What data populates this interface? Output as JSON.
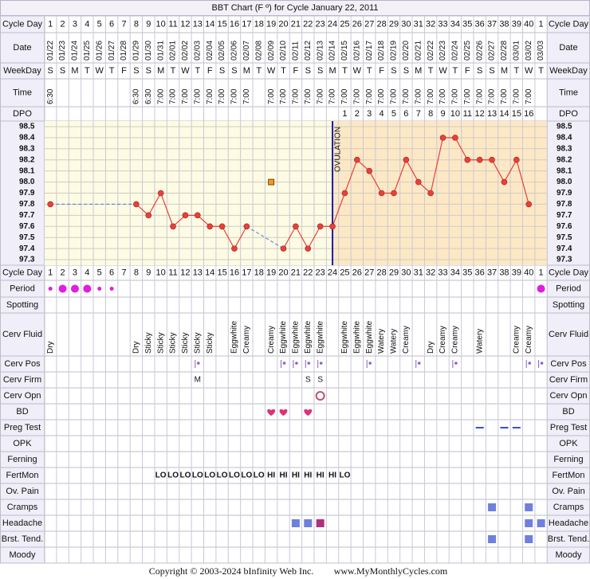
{
  "title": "BBT Chart (F º) for Cycle January 22, 2011",
  "row_labels": {
    "cycle_day": "Cycle Day",
    "date": "Date",
    "weekday": "WeekDay",
    "time": "Time",
    "dpo": "DPO",
    "period": "Period",
    "spotting": "Spotting",
    "cerv_fluid": "Cerv Fluid",
    "cerv_pos": "Cerv Pos",
    "cerv_firm": "Cerv Firm",
    "cerv_opn": "Cerv Opn",
    "bd": "BD",
    "preg_test": "Preg Test",
    "opk": "OPK",
    "ferning": "Ferning",
    "fertmon": "FertMon",
    "ov_pain": "Ov. Pain",
    "cramps": "Cramps",
    "headache": "Headache",
    "brst_tend": "Brst. Tend.",
    "moody": "Moody"
  },
  "days": {
    "date": [
      "01/22",
      "01/23",
      "01/24",
      "01/25",
      "01/26",
      "01/27",
      "01/28",
      "01/29",
      "01/30",
      "01/31",
      "02/01",
      "02/02",
      "02/03",
      "02/04",
      "02/05",
      "02/06",
      "02/07",
      "02/08",
      "02/09",
      "02/10",
      "02/11",
      "02/12",
      "02/13",
      "02/14",
      "02/15",
      "02/16",
      "02/17",
      "02/18",
      "02/19",
      "02/20",
      "02/21",
      "02/22",
      "02/23",
      "02/24",
      "02/25",
      "02/26",
      "02/27",
      "02/28",
      "03/01",
      "03/02",
      "03/03"
    ],
    "weekday": [
      "S",
      "S",
      "M",
      "T",
      "W",
      "T",
      "F",
      "S",
      "S",
      "M",
      "T",
      "W",
      "T",
      "F",
      "S",
      "S",
      "M",
      "T",
      "W",
      "T",
      "F",
      "S",
      "S",
      "M",
      "T",
      "W",
      "T",
      "F",
      "S",
      "S",
      "M",
      "T",
      "W",
      "T",
      "F",
      "S",
      "S",
      "M",
      "T",
      "W",
      "T"
    ],
    "time": [
      "6:30",
      null,
      null,
      null,
      null,
      null,
      null,
      "6:30",
      "6:30",
      "7:00",
      "7:00",
      "7:00",
      "7:00",
      "7:00",
      "7:00",
      "7:00",
      "7:00",
      null,
      "7:00",
      "7:00",
      "7:00",
      "7:00",
      "7:00",
      "7:00",
      "7:00",
      "7:00",
      "7:00",
      "7:00",
      "7:00",
      "7:00",
      "7:00",
      "7:00",
      "7:00",
      "7:00",
      "7:00",
      "7:00",
      "7:00",
      "7:00",
      "7:00",
      "7:00",
      null
    ],
    "dpo": [
      null,
      null,
      null,
      null,
      null,
      null,
      null,
      null,
      null,
      null,
      null,
      null,
      null,
      null,
      null,
      null,
      null,
      null,
      null,
      null,
      null,
      null,
      null,
      null,
      1,
      2,
      3,
      4,
      5,
      6,
      7,
      8,
      9,
      10,
      11,
      12,
      13,
      14,
      15,
      16,
      null
    ],
    "period": [
      1,
      2,
      2,
      2,
      1,
      1,
      null,
      null,
      null,
      null,
      null,
      null,
      null,
      null,
      null,
      null,
      null,
      null,
      null,
      null,
      null,
      null,
      null,
      null,
      null,
      null,
      null,
      null,
      null,
      null,
      null,
      null,
      null,
      null,
      null,
      null,
      null,
      null,
      null,
      null,
      2
    ],
    "cerv_fluid": [
      "Dry",
      null,
      null,
      null,
      null,
      null,
      null,
      "Dry",
      "Sticky",
      "Sticky",
      "Sticky",
      "Sticky",
      "Sticky",
      "Sticky",
      null,
      "Eggwhite",
      "Creamy",
      null,
      "Creamy",
      "Eggwhite",
      "Eggwhite",
      "Eggwhite",
      "Eggwhite",
      null,
      "Eggwhite",
      "Eggwhite",
      "Eggwhite",
      "Watery",
      "Watery",
      "Creamy",
      null,
      "Dry",
      "Creamy",
      "Creamy",
      null,
      "Watery",
      null,
      null,
      "Creamy",
      "Creamy",
      null
    ],
    "cerv_pos": [
      null,
      null,
      null,
      null,
      null,
      null,
      null,
      null,
      null,
      null,
      null,
      null,
      1,
      null,
      null,
      null,
      null,
      null,
      null,
      1,
      1,
      1,
      1,
      null,
      null,
      null,
      1,
      null,
      null,
      null,
      1,
      null,
      null,
      1,
      null,
      null,
      null,
      null,
      null,
      1,
      1
    ],
    "cerv_firm": [
      null,
      null,
      null,
      null,
      null,
      null,
      null,
      null,
      null,
      null,
      null,
      null,
      "M",
      null,
      null,
      null,
      null,
      null,
      null,
      null,
      null,
      "S",
      "S",
      null,
      null,
      null,
      null,
      null,
      null,
      null,
      null,
      null,
      null,
      null,
      null,
      null,
      null,
      null,
      null,
      null,
      null
    ],
    "cerv_opn": [
      null,
      null,
      null,
      null,
      null,
      null,
      null,
      null,
      null,
      null,
      null,
      null,
      null,
      null,
      null,
      null,
      null,
      null,
      null,
      null,
      null,
      null,
      1,
      null,
      null,
      null,
      null,
      null,
      null,
      null,
      null,
      null,
      null,
      null,
      null,
      null,
      null,
      null,
      null,
      null,
      null
    ],
    "bd": [
      null,
      null,
      null,
      null,
      null,
      null,
      null,
      null,
      null,
      null,
      null,
      null,
      null,
      null,
      null,
      null,
      null,
      null,
      1,
      1,
      null,
      1,
      null,
      null,
      null,
      null,
      null,
      null,
      null,
      null,
      null,
      null,
      null,
      null,
      null,
      null,
      null,
      null,
      null,
      null,
      null
    ],
    "preg_test": [
      null,
      null,
      null,
      null,
      null,
      null,
      null,
      null,
      null,
      null,
      null,
      null,
      null,
      null,
      null,
      null,
      null,
      null,
      null,
      null,
      null,
      null,
      null,
      null,
      null,
      null,
      null,
      null,
      null,
      null,
      null,
      null,
      null,
      null,
      null,
      1,
      null,
      1,
      1,
      null,
      null
    ],
    "fertmon": [
      null,
      null,
      null,
      null,
      null,
      null,
      null,
      null,
      null,
      "LO",
      "LO",
      "LO",
      "LO",
      "LO",
      "LO",
      "LO",
      "LO",
      "LO",
      "HI",
      "HI",
      "HI",
      "HI",
      "HI",
      "HI",
      "LO",
      null,
      null,
      null,
      null,
      null,
      null,
      null,
      null,
      null,
      null,
      null,
      null,
      null,
      null,
      null,
      null
    ],
    "cramps": [
      null,
      null,
      null,
      null,
      null,
      null,
      null,
      null,
      null,
      null,
      null,
      null,
      null,
      null,
      null,
      null,
      null,
      null,
      null,
      null,
      null,
      null,
      null,
      null,
      null,
      null,
      null,
      null,
      null,
      null,
      null,
      null,
      null,
      null,
      null,
      null,
      1,
      null,
      null,
      1,
      null
    ],
    "headache": [
      null,
      null,
      null,
      null,
      null,
      null,
      null,
      null,
      null,
      null,
      null,
      null,
      null,
      null,
      null,
      null,
      null,
      null,
      null,
      null,
      1,
      1,
      2,
      null,
      null,
      null,
      null,
      null,
      null,
      null,
      null,
      null,
      null,
      null,
      null,
      null,
      null,
      null,
      null,
      1,
      1
    ],
    "brst_tend": [
      null,
      null,
      null,
      null,
      null,
      null,
      null,
      null,
      null,
      null,
      null,
      null,
      null,
      null,
      null,
      null,
      null,
      null,
      null,
      null,
      null,
      null,
      null,
      null,
      null,
      null,
      null,
      null,
      null,
      null,
      null,
      null,
      null,
      null,
      null,
      null,
      1,
      null,
      null,
      1,
      null
    ]
  },
  "chart_data": {
    "type": "line",
    "categories": [
      1,
      2,
      3,
      4,
      5,
      6,
      7,
      8,
      9,
      10,
      11,
      12,
      13,
      14,
      15,
      16,
      17,
      18,
      19,
      20,
      21,
      22,
      23,
      24,
      25,
      26,
      27,
      28,
      29,
      30,
      31,
      32,
      33,
      34,
      35,
      36,
      37,
      38,
      39,
      40,
      1
    ],
    "values": [
      97.8,
      null,
      null,
      null,
      null,
      null,
      null,
      97.8,
      97.7,
      97.9,
      97.6,
      97.7,
      97.7,
      97.6,
      97.6,
      97.4,
      97.6,
      null,
      null,
      97.4,
      97.6,
      97.4,
      97.6,
      97.6,
      97.9,
      98.2,
      98.1,
      97.9,
      97.9,
      98.2,
      98.0,
      97.9,
      98.4,
      98.4,
      98.2,
      98.2,
      98.2,
      98.0,
      98.2,
      97.8,
      null
    ],
    "color": "#e8403a",
    "discarded_values": [
      null,
      null,
      null,
      null,
      null,
      null,
      null,
      null,
      null,
      null,
      null,
      null,
      null,
      null,
      null,
      null,
      null,
      null,
      98.0,
      null,
      null,
      null,
      null,
      null,
      null,
      null,
      null,
      null,
      null,
      null,
      null,
      null,
      null,
      null,
      null,
      null,
      null,
      null,
      null,
      null,
      null
    ],
    "discarded_color": "#f7941d",
    "ylim": [
      97.25,
      98.55
    ],
    "yticks": [
      98.5,
      98.4,
      98.3,
      98.2,
      98.1,
      {
        "value": 98.0,
        "label": "98.0"
      },
      97.9,
      97.8,
      97.7,
      97.6,
      97.5,
      97.4,
      97.3
    ],
    "grid": true,
    "ovulation_day": 24,
    "ovulation_label": "OVULATION"
  },
  "footer": {
    "copyright": "Copyright © 2003-2024 bInfinity Web Inc.",
    "website": "www.MyMonthlyCycles.com"
  }
}
